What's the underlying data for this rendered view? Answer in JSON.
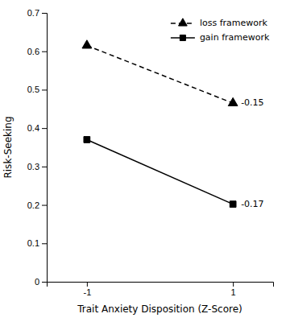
{
  "chart_data": {
    "type": "line",
    "x": [
      -1,
      1
    ],
    "series": [
      {
        "name": "loss framework",
        "color": "#000000",
        "values": [
          0.615,
          0.465
        ],
        "marker": "triangle",
        "line_style": "dashed"
      },
      {
        "name": "gain framework",
        "color": "#000000",
        "values": [
          0.37,
          0.202
        ],
        "marker": "square",
        "line_style": "solid"
      }
    ],
    "xlabel": "Trait Anxiety Disposition (Z-Score)",
    "ylabel": "Risk-Seeking",
    "xlim": [
      -1.55,
      1.55
    ],
    "ylim": [
      0,
      0.7
    ],
    "xticks": [
      -1,
      1
    ],
    "yticks": [
      0,
      0.1,
      0.2,
      0.3,
      0.4,
      0.5,
      0.6,
      0.7
    ],
    "annotations": [
      {
        "text": "-0.15",
        "x": 1,
        "y": 0.465
      },
      {
        "text": "-0.17",
        "x": 1,
        "y": 0.202
      }
    ],
    "legend": "upper right"
  }
}
